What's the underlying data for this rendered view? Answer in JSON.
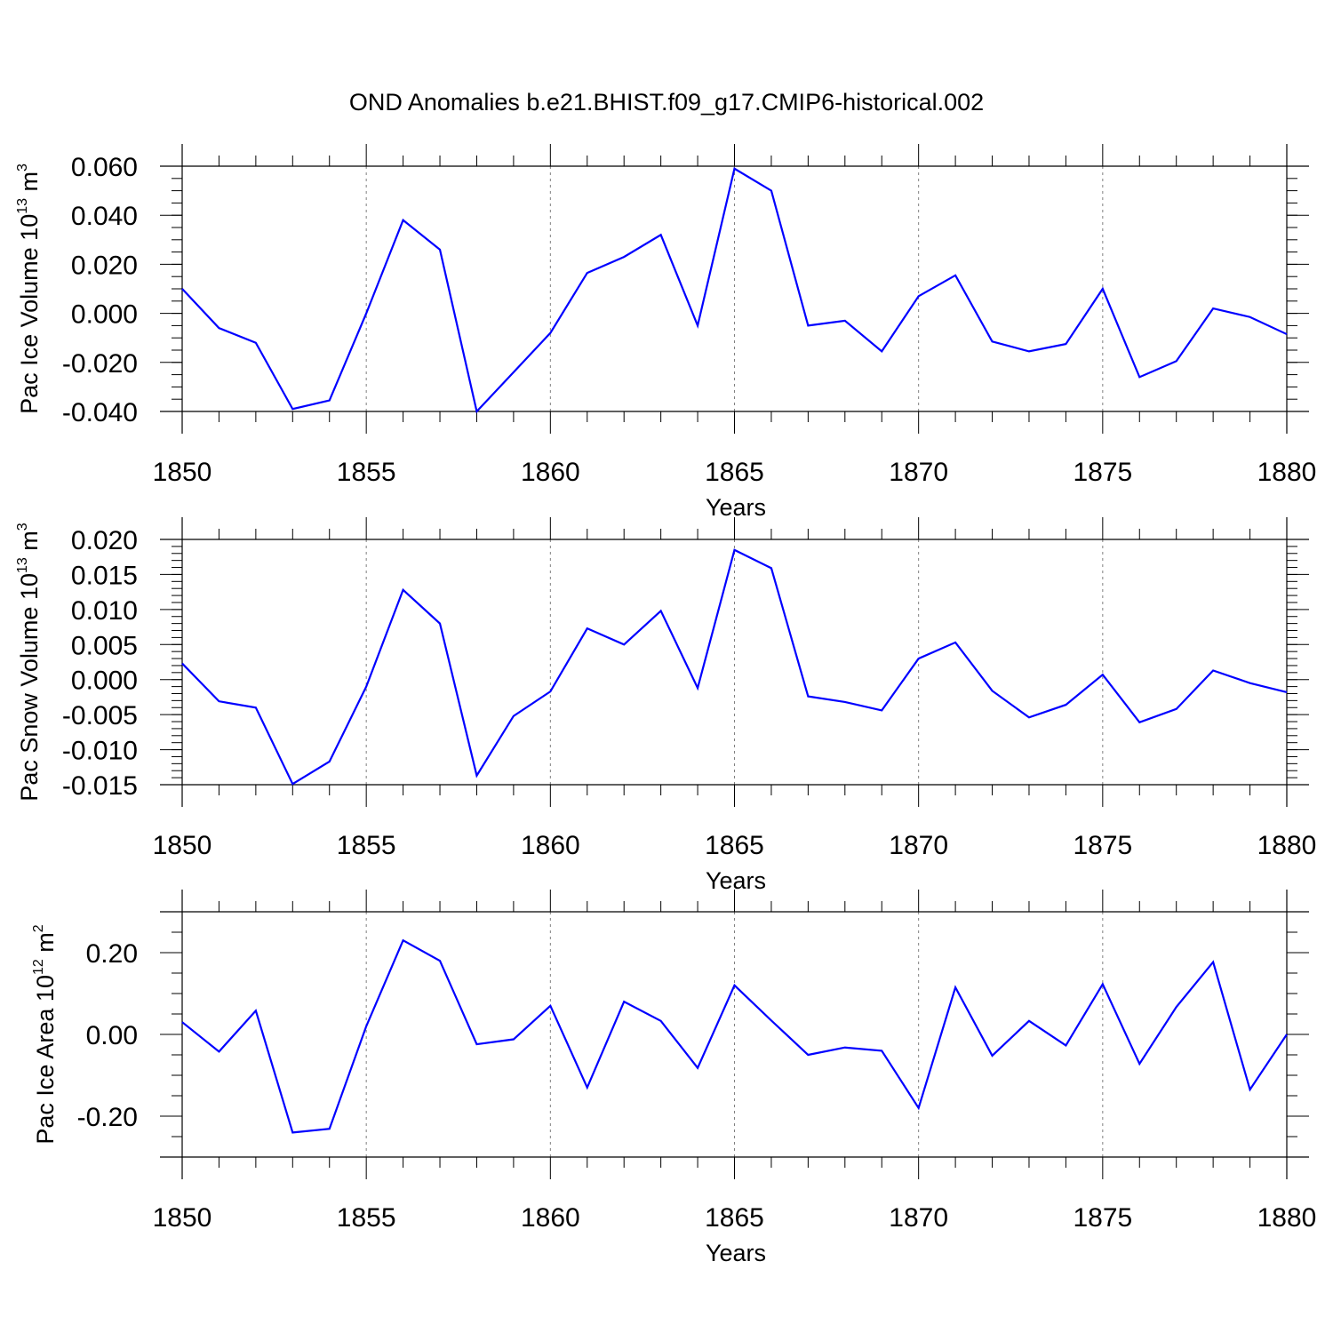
{
  "figure": {
    "title": "OND Anomalies b.e21.BHIST.f09_g17.CMIP6-historical.002"
  },
  "colors": {
    "line": "#0000ff",
    "grid": "#808080",
    "axis": "#000000"
  },
  "chart_data": [
    {
      "type": "line",
      "title": "",
      "ylabel": "Pac Ice Volume",
      "ylabel_unit_base": "10",
      "ylabel_unit_exp": "13",
      "ylabel_unit_name": "m",
      "ylabel_unit_name_exp": "3",
      "xlabel": "Years",
      "xlim": [
        1850,
        1880
      ],
      "ylim": [
        -0.04,
        0.06
      ],
      "x_ticks": [
        1850,
        1855,
        1860,
        1865,
        1870,
        1875,
        1880
      ],
      "x_tick_labels": [
        "1850",
        "1855",
        "1860",
        "1865",
        "1870",
        "1875",
        "1880"
      ],
      "y_ticks": [
        -0.04,
        -0.02,
        0.0,
        0.02,
        0.04,
        0.06
      ],
      "y_tick_labels": [
        "-0.040",
        "-0.020",
        "0.000",
        "0.020",
        "0.040",
        "0.060"
      ],
      "y_minor_step": 0.005,
      "grid_x": [
        1855,
        1860,
        1865,
        1870,
        1875
      ],
      "x": [
        1850,
        1851,
        1852,
        1853,
        1854,
        1855,
        1856,
        1857,
        1858,
        1859,
        1860,
        1861,
        1862,
        1863,
        1864,
        1865,
        1866,
        1867,
        1868,
        1869,
        1870,
        1871,
        1872,
        1873,
        1874,
        1875,
        1876,
        1877,
        1878,
        1879,
        1880
      ],
      "series": [
        {
          "name": "Pac Ice Volume",
          "values": [
            0.01,
            -0.006,
            -0.012,
            -0.039,
            -0.0355,
            0.0,
            0.038,
            0.026,
            -0.04,
            -0.024,
            -0.008,
            0.0165,
            0.023,
            0.032,
            -0.005,
            0.059,
            0.05,
            -0.005,
            -0.003,
            -0.0155,
            0.007,
            0.0155,
            -0.0115,
            -0.0155,
            -0.0125,
            0.01,
            -0.026,
            -0.0195,
            0.002,
            -0.0015,
            -0.0085
          ]
        }
      ]
    },
    {
      "type": "line",
      "title": "",
      "ylabel": "Pac Snow Volume",
      "ylabel_unit_base": "10",
      "ylabel_unit_exp": "13",
      "ylabel_unit_name": "m",
      "ylabel_unit_name_exp": "3",
      "xlabel": "Years",
      "xlim": [
        1850,
        1880
      ],
      "ylim": [
        -0.015,
        0.02
      ],
      "x_ticks": [
        1850,
        1855,
        1860,
        1865,
        1870,
        1875,
        1880
      ],
      "x_tick_labels": [
        "1850",
        "1855",
        "1860",
        "1865",
        "1870",
        "1875",
        "1880"
      ],
      "y_ticks": [
        -0.015,
        -0.01,
        -0.005,
        0.0,
        0.005,
        0.01,
        0.015,
        0.02
      ],
      "y_tick_labels": [
        "-0.015",
        "-0.010",
        "-0.005",
        "0.000",
        "0.005",
        "0.010",
        "0.015",
        "0.020"
      ],
      "y_minor_step": 0.001,
      "grid_x": [
        1855,
        1860,
        1865,
        1870,
        1875
      ],
      "x": [
        1850,
        1851,
        1852,
        1853,
        1854,
        1855,
        1856,
        1857,
        1858,
        1859,
        1860,
        1861,
        1862,
        1863,
        1864,
        1865,
        1866,
        1867,
        1868,
        1869,
        1870,
        1871,
        1872,
        1873,
        1874,
        1875,
        1876,
        1877,
        1878,
        1879,
        1880
      ],
      "series": [
        {
          "name": "Pac Snow Volume",
          "values": [
            0.0023,
            -0.0031,
            -0.004,
            -0.0149,
            -0.0117,
            -0.001,
            0.0128,
            0.008,
            -0.0137,
            -0.0052,
            -0.0017,
            0.0073,
            0.005,
            0.0098,
            -0.0012,
            0.0185,
            0.0159,
            -0.0024,
            -0.0032,
            -0.0044,
            0.003,
            0.0053,
            -0.0016,
            -0.0054,
            -0.0036,
            0.0007,
            -0.0061,
            -0.0042,
            0.0013,
            -0.0005,
            -0.0018
          ]
        }
      ]
    },
    {
      "type": "line",
      "title": "",
      "ylabel": "Pac Ice Area",
      "ylabel_unit_base": "10",
      "ylabel_unit_exp": "12",
      "ylabel_unit_name": "m",
      "ylabel_unit_name_exp": "2",
      "xlabel": "Years",
      "xlim": [
        1850,
        1880
      ],
      "ylim": [
        -0.3,
        0.3
      ],
      "x_ticks": [
        1850,
        1855,
        1860,
        1865,
        1870,
        1875,
        1880
      ],
      "x_tick_labels": [
        "1850",
        "1855",
        "1860",
        "1865",
        "1870",
        "1875",
        "1880"
      ],
      "y_ticks": [
        -0.2,
        0.0,
        0.2
      ],
      "y_tick_labels": [
        "-0.20",
        "0.00",
        "0.20"
      ],
      "y_minor_step": 0.05,
      "grid_x": [
        1855,
        1860,
        1865,
        1870,
        1875
      ],
      "x": [
        1850,
        1851,
        1852,
        1853,
        1854,
        1855,
        1856,
        1857,
        1858,
        1859,
        1860,
        1861,
        1862,
        1863,
        1864,
        1865,
        1866,
        1867,
        1868,
        1869,
        1870,
        1871,
        1872,
        1873,
        1874,
        1875,
        1876,
        1877,
        1878,
        1879,
        1880
      ],
      "series": [
        {
          "name": "Pac Ice Area",
          "values": [
            0.03,
            -0.042,
            0.058,
            -0.24,
            -0.231,
            0.02,
            0.23,
            0.18,
            -0.024,
            -0.012,
            0.07,
            -0.13,
            0.08,
            0.033,
            -0.082,
            0.12,
            0.034,
            -0.05,
            -0.032,
            -0.04,
            -0.18,
            0.115,
            -0.052,
            0.033,
            -0.027,
            0.123,
            -0.072,
            0.067,
            0.177,
            -0.135,
            0.0
          ]
        }
      ]
    }
  ]
}
